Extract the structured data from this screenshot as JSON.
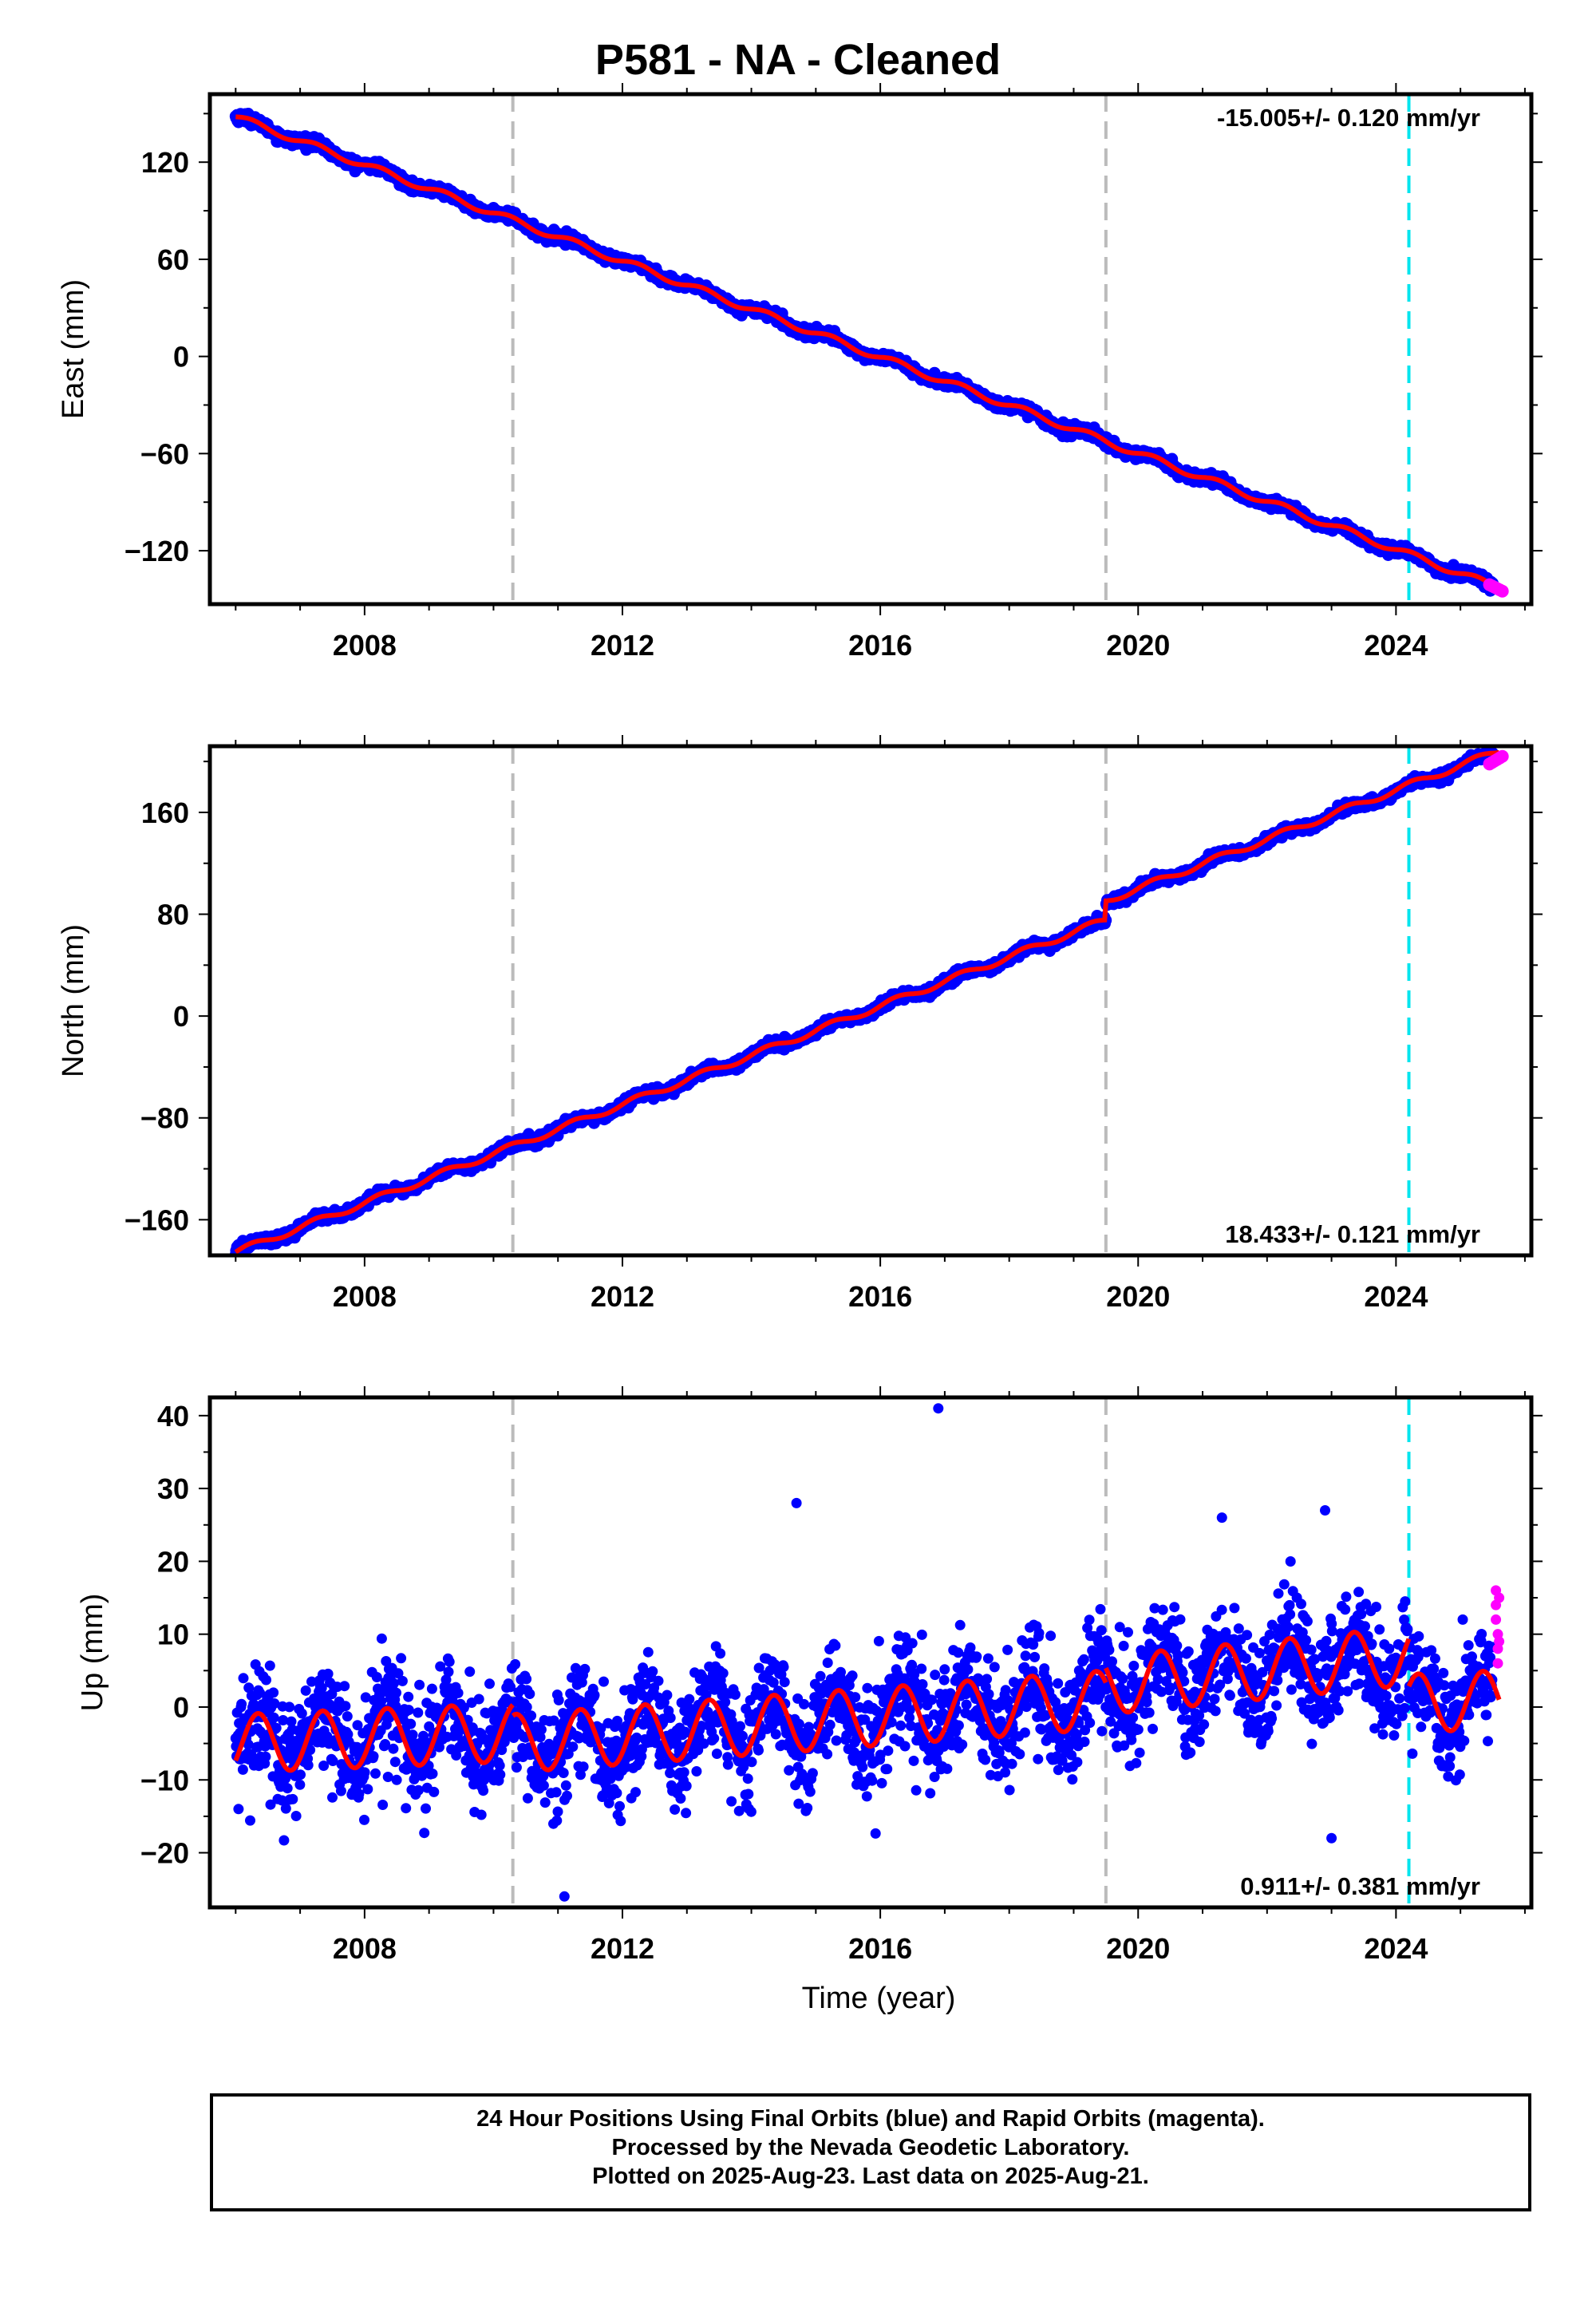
{
  "title": "P581  - NA - Cleaned",
  "footer": {
    "line1": "24 Hour Positions Using Final Orbits (blue) and Rapid Orbits (magenta).",
    "line2": "Processed by the Nevada Geodetic Laboratory.",
    "line3": "Plotted on 2025-Aug-23. Last data on 2025-Aug-21."
  },
  "colors": {
    "final_orbits": "#0000ff",
    "rapid_orbits": "#ff00ff",
    "model": "#ff0000",
    "event_gray": "#bbbbbb",
    "event_cyan": "#00e5ee"
  },
  "chart_data": [
    {
      "type": "scatter",
      "panel": "east",
      "ylabel": "East (mm)",
      "xlabel": "",
      "xlim": [
        2005.6,
        2026.1
      ],
      "ylim": [
        -153,
        162
      ],
      "xticks": [
        2008,
        2012,
        2016,
        2020,
        2024
      ],
      "yticks": [
        -120,
        -60,
        0,
        60,
        120
      ],
      "rate_label": "-15.005+/- 0.120 mm/yr",
      "rate_label_position": "top-right",
      "events_gray": [
        2010.3,
        2019.5
      ],
      "events_cyan": [
        2024.2
      ],
      "series": [
        {
          "role": "final_orbits",
          "x_start": 2006.0,
          "x_end": 2025.5,
          "y_start": 148,
          "y_end": -142,
          "scatter_mm": 2.5,
          "seasonal_amp": 2.0,
          "step_at": null,
          "step_mm": 0
        },
        {
          "role": "rapid_orbits",
          "x_start": 2025.45,
          "x_end": 2025.65,
          "y_start": -141,
          "y_end": -145
        },
        {
          "role": "model",
          "x_start": 2006.0,
          "x_end": 2025.6,
          "y_start": 148,
          "y_end": -143
        }
      ]
    },
    {
      "type": "scatter",
      "panel": "north",
      "ylabel": "North (mm)",
      "xlabel": "",
      "xlim": [
        2005.6,
        2026.1
      ],
      "ylim": [
        -188,
        212
      ],
      "xticks": [
        2008,
        2012,
        2016,
        2020,
        2024
      ],
      "yticks": [
        -160,
        -80,
        0,
        80,
        160
      ],
      "rate_label": "18.433+/- 0.121 mm/yr",
      "rate_label_position": "bottom-right",
      "events_gray": [
        2010.3,
        2019.5
      ],
      "events_cyan": [
        2024.2
      ],
      "series": [
        {
          "role": "final_orbits",
          "x_start": 2006.0,
          "x_end": 2025.5,
          "y_start": -178,
          "y_end": 198,
          "scatter_mm": 3.0,
          "seasonal_amp": 2.5,
          "step_at": 2019.5,
          "step_mm": 15
        },
        {
          "role": "rapid_orbits",
          "x_start": 2025.45,
          "x_end": 2025.65,
          "y_start": 198,
          "y_end": 204
        },
        {
          "role": "model",
          "x_start": 2006.0,
          "x_end": 2025.6,
          "y_start": -178,
          "y_end": 201
        }
      ]
    },
    {
      "type": "scatter",
      "panel": "up",
      "ylabel": "Up (mm)",
      "xlabel": "Time (year)",
      "xlim": [
        2005.6,
        2026.1
      ],
      "ylim": [
        -27.5,
        42.5
      ],
      "xticks": [
        2008,
        2012,
        2016,
        2020,
        2024
      ],
      "yticks": [
        -20,
        -10,
        0,
        10,
        20,
        30,
        40
      ],
      "rate_label": "0.911+/- 0.381 mm/yr",
      "rate_label_position": "bottom-right",
      "events_gray": [
        2010.3,
        2019.5
      ],
      "events_cyan": [
        2024.2
      ],
      "series": [
        {
          "role": "final_orbits",
          "x_start": 2006.0,
          "x_end": 2025.5,
          "scatter_mm": 3.8,
          "seasonal_amp": 4.0
        },
        {
          "role": "rapid_orbits",
          "x": [
            2025.55,
            2025.55,
            2025.55,
            2025.58,
            2025.58,
            2025.58,
            2025.6,
            2025.6
          ],
          "y": [
            16,
            14,
            12,
            10,
            8,
            6,
            15,
            9
          ]
        },
        {
          "role": "model",
          "seasonal_amp": 4.0,
          "offset_segments": [
            {
              "x_start": 2006.0,
              "x_end": 2010.3,
              "y_start": -5.0,
              "y_end": -3.5
            },
            {
              "x_start": 2010.3,
              "x_end": 2019.5,
              "y_start": -5.0,
              "y_end": 1.0
            },
            {
              "x_start": 2019.5,
              "x_end": 2024.2,
              "y_start": 3.0,
              "y_end": 7.0
            },
            {
              "x_start": 2024.2,
              "x_end": 2025.6,
              "y_start": 0.5,
              "y_end": 1.0
            }
          ]
        },
        {
          "role": "outliers",
          "x": [
            2016.9,
            2014.7,
            2021.3,
            2022.9,
            2011.1,
            2023.0
          ],
          "y": [
            41,
            28,
            26,
            27,
            -26,
            -18
          ]
        }
      ]
    }
  ]
}
